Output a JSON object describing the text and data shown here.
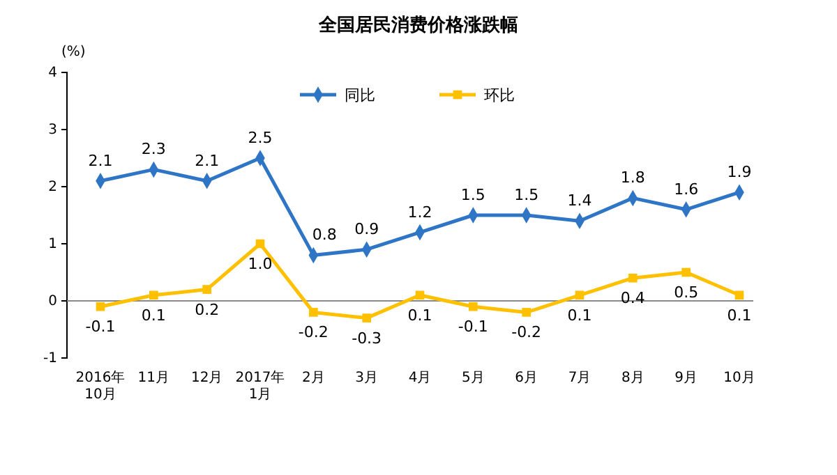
{
  "chart_data": {
    "type": "line",
    "title": "全国居民消费价格涨跌幅",
    "ylabel": "(%)",
    "categories": [
      "2016年\n10月",
      "11月",
      "12月",
      "2017年\n1月",
      "2月",
      "3月",
      "4月",
      "5月",
      "6月",
      "7月",
      "8月",
      "9月",
      "10月"
    ],
    "series": [
      {
        "name": "同比",
        "color": "#2e75c6",
        "marker": "diamond",
        "values": [
          2.1,
          2.3,
          2.1,
          2.5,
          0.8,
          0.9,
          1.2,
          1.5,
          1.5,
          1.4,
          1.8,
          1.6,
          1.9
        ],
        "value_labels": [
          "2.1",
          "2.3",
          "2.1",
          "2.5",
          "0.8",
          "0.9",
          "1.2",
          "1.5",
          "1.5",
          "1.4",
          "1.8",
          "1.6",
          "1.9"
        ]
      },
      {
        "name": "环比",
        "color": "#ffc000",
        "marker": "square",
        "values": [
          -0.1,
          0.1,
          0.2,
          1.0,
          -0.2,
          -0.3,
          0.1,
          -0.1,
          -0.2,
          0.1,
          0.4,
          0.5,
          0.1
        ],
        "value_labels": [
          "-0.1",
          "0.1",
          "0.2",
          "1.0",
          "-0.2",
          "-0.3",
          "0.1",
          "-0.1",
          "-0.2",
          "0.1",
          "0.4",
          "0.5",
          "0.1"
        ]
      }
    ],
    "ylim": [
      -1,
      4
    ],
    "yticks": [
      -1,
      0,
      1,
      2,
      3,
      4
    ],
    "legend": "top",
    "line_style": "solid"
  }
}
